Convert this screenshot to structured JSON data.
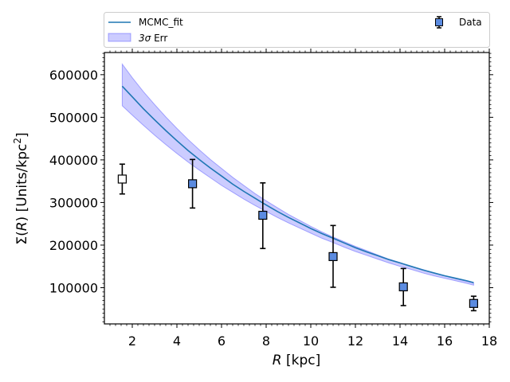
{
  "chart_data": {
    "type": "scatter",
    "title": "",
    "xlabel": {
      "italic": "R",
      "rest": " [kpc]"
    },
    "ylabel": {
      "pre": "Σ(",
      "italic": "R",
      "mid": ") [Units/kpc",
      "sup": "2",
      "post": "]"
    },
    "xlim": [
      0.75,
      18.0
    ],
    "ylim": [
      15000,
      652000
    ],
    "xticks": [
      2,
      4,
      6,
      8,
      10,
      12,
      14,
      16,
      18
    ],
    "xtick_labels": [
      "2",
      "4",
      "6",
      "8",
      "10",
      "12",
      "14",
      "16",
      "18"
    ],
    "yticks": [
      100000,
      200000,
      300000,
      400000,
      500000,
      600000
    ],
    "ytick_labels": [
      "100000",
      "200000",
      "300000",
      "400000",
      "500000",
      "600000"
    ],
    "legend": {
      "position": "top",
      "fit_label": "MCMC_fit",
      "err_label_symbol": "3σ",
      "err_label_rest": " Err",
      "data_label": "Data"
    },
    "colors": {
      "fit": "#1f77b4",
      "band": "#0000ff",
      "marker": "#5b8be0",
      "errorbar": "#000000"
    },
    "series": [
      {
        "name": "MCMC_fit",
        "kind": "line",
        "x": [
          1.55,
          2.0,
          2.5,
          3.0,
          3.5,
          4.0,
          4.5,
          5.0,
          5.5,
          6.0,
          6.5,
          7.0,
          7.5,
          8.0,
          8.5,
          9.0,
          9.5,
          10.0,
          10.5,
          11.0,
          11.5,
          12.0,
          12.5,
          13.0,
          13.5,
          14.0,
          14.5,
          15.0,
          15.5,
          16.0,
          16.5,
          17.0,
          17.3
        ],
        "y": [
          573000,
          548000,
          520000,
          494000,
          469000,
          445000,
          422000,
          401000,
          381000,
          362000,
          343000,
          326000,
          310000,
          294000,
          279000,
          265000,
          252000,
          239000,
          227000,
          216000,
          205000,
          194000,
          184000,
          175000,
          166000,
          158000,
          150000,
          142000,
          135000,
          128000,
          122000,
          116000,
          112000
        ]
      },
      {
        "name": "3σ Err",
        "kind": "band",
        "x": [
          1.55,
          2.0,
          2.5,
          3.0,
          3.5,
          4.0,
          4.5,
          5.0,
          5.5,
          6.0,
          6.5,
          7.0,
          7.5,
          8.0,
          8.5,
          9.0,
          9.5,
          10.0,
          10.5,
          11.0,
          11.5,
          12.0,
          12.5,
          13.0,
          13.5,
          14.0,
          14.5,
          15.0,
          15.5,
          16.0,
          16.5,
          17.0,
          17.3
        ],
        "lower": [
          527000,
          505000,
          481000,
          458000,
          436000,
          415000,
          395000,
          376000,
          358000,
          340000,
          324000,
          308000,
          293000,
          279000,
          265000,
          252000,
          240000,
          228000,
          216000,
          206000,
          195000,
          185000,
          176000,
          167000,
          158000,
          150000,
          143000,
          135000,
          128000,
          122000,
          116000,
          110000,
          106000
        ],
        "upper": [
          625000,
          593000,
          560000,
          530000,
          501000,
          474000,
          448000,
          424000,
          401000,
          380000,
          359000,
          340000,
          321000,
          304000,
          288000,
          272000,
          258000,
          244000,
          231000,
          219000,
          208000,
          197000,
          187000,
          177000,
          167000,
          159000,
          150000,
          143000,
          135000,
          128000,
          121000,
          115000,
          111000
        ]
      },
      {
        "name": "Data",
        "kind": "errorbar",
        "x": [
          4.7,
          7.85,
          11.0,
          14.15,
          17.3
        ],
        "y": [
          344000,
          270000,
          173000,
          102000,
          63000
        ],
        "yerr_low": [
          57000,
          78000,
          72000,
          44000,
          17000
        ],
        "yerr_high": [
          57000,
          76000,
          73000,
          43000,
          17000
        ]
      },
      {
        "name": "Excluded point",
        "kind": "errorbar-open",
        "x": [
          1.55
        ],
        "y": [
          355000
        ],
        "yerr_low": [
          35000
        ],
        "yerr_high": [
          35000
        ]
      }
    ]
  }
}
